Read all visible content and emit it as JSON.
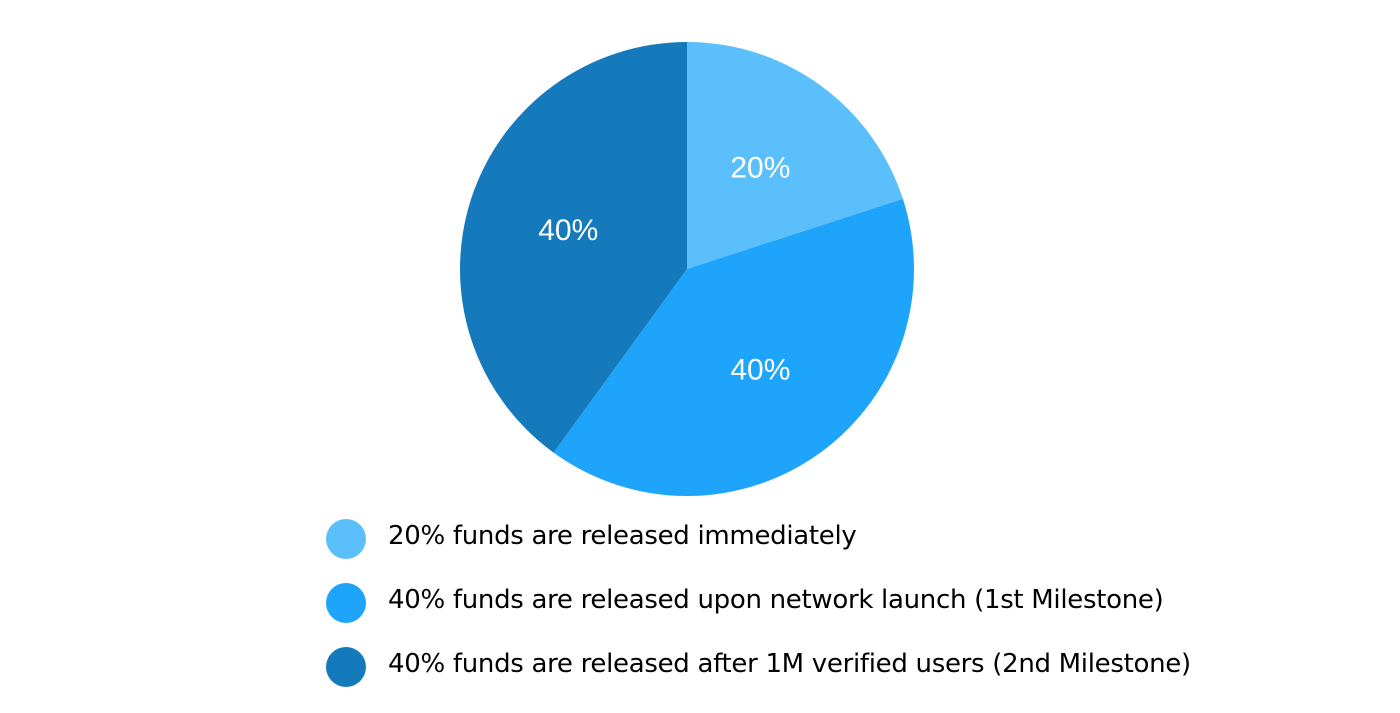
{
  "chart_data": {
    "type": "pie",
    "title": "",
    "slices": [
      {
        "label": "20%",
        "value": 20,
        "color": "#5bbffc"
      },
      {
        "label": "40%",
        "value": 40,
        "color": "#1fa4fb"
      },
      {
        "label": "40%",
        "value": 40,
        "color": "#157abb"
      }
    ],
    "start": "12 o'clock",
    "direction": "clockwise",
    "legend_placement": "bottom",
    "legend": [
      {
        "text": "20% funds are released immediately",
        "color": "#5bbffc"
      },
      {
        "text": "40% funds are released upon network launch (1st Milestone)",
        "color": "#1fa4fb"
      },
      {
        "text": "40% funds are released after 1M verified users (2nd Milestone)",
        "color": "#157abb"
      }
    ]
  }
}
